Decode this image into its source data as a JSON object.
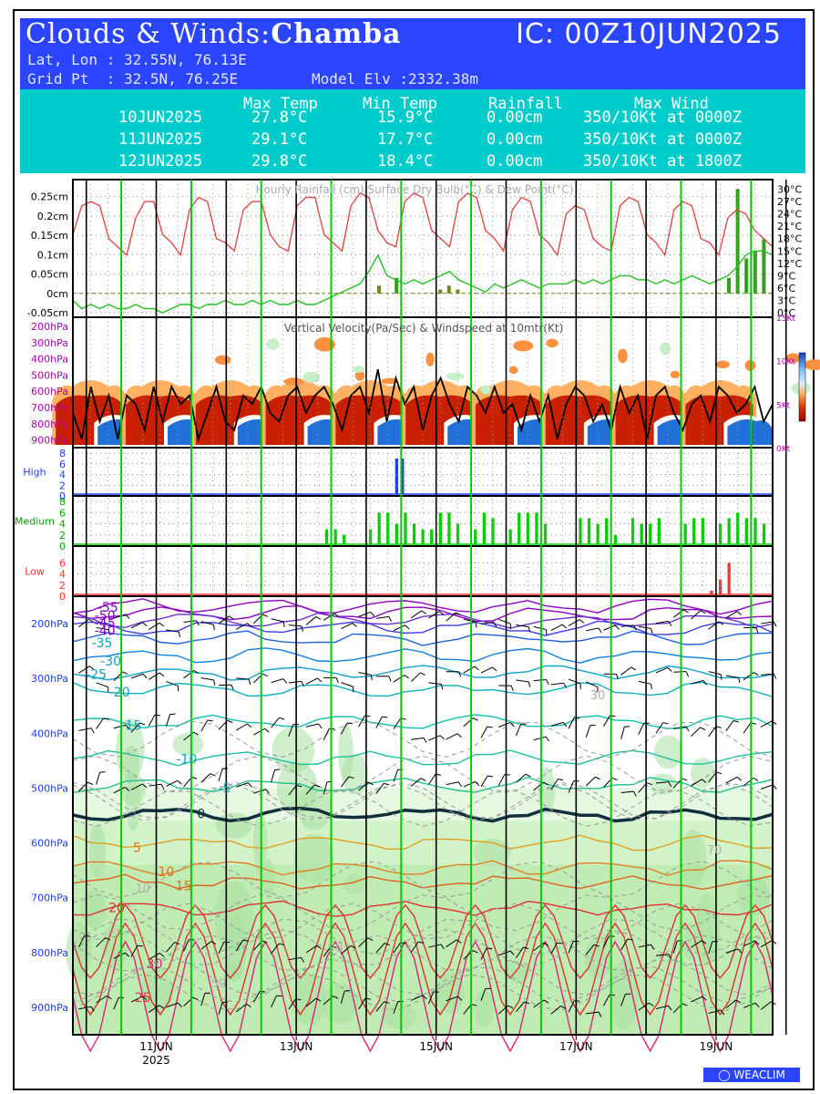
{
  "header": {
    "title_prefix": "Clouds & Winds:",
    "place": "Chamba",
    "ic": "IC: 00Z10JUN2025",
    "latlon": "Lat, Lon : 32.55N, 76.13E",
    "gridpt": "Grid Pt  : 32.5N, 76.25E",
    "elev": "Model Elv :2332.38m"
  },
  "summary": {
    "headers": [
      "Max Temp",
      "Min Temp",
      "Rainfall",
      "Max Wind"
    ],
    "rows": [
      {
        "date": "10JUN2025",
        "max": "27.8°C",
        "min": "15.9°C",
        "rain": "0.00cm",
        "wind": "350/10Kt at 0000Z"
      },
      {
        "date": "11JUN2025",
        "max": "29.1°C",
        "min": "17.7°C",
        "rain": "0.00cm",
        "wind": "350/10Kt at 0000Z"
      },
      {
        "date": "12JUN2025",
        "max": "29.8°C",
        "min": "18.4°C",
        "rain": "0.00cm",
        "wind": "350/10Kt at 1800Z"
      }
    ]
  },
  "colors": {
    "rain": "#6a8a1a",
    "rain_bright": "#2ea11a",
    "drybulb": "#e04a4a",
    "dewpoint": "#22c022",
    "high": "#1e3cff",
    "medium": "#00d000",
    "low": "#ff3030",
    "day_line": "#00cc00"
  },
  "chart_data": [
    {
      "type": "line",
      "title": "Hourly Rainfall (cm)   Surface Dry Bulb(°C)  & Dew Point(°C)",
      "yleft_ticks": [
        "0.25cm",
        "0.2cm",
        "0.15cm",
        "0.1cm",
        "0.05cm",
        "0cm",
        "-0.05cm"
      ],
      "yleft_values": [
        0.25,
        0.2,
        0.15,
        0.1,
        0.05,
        0,
        -0.05
      ],
      "ylim_left": [
        -0.05,
        0.28
      ],
      "yright_ticks": [
        "30°C",
        "27°C",
        "24°C",
        "21°C",
        "18°C",
        "15°C",
        "12°C",
        "9°C",
        "6°C",
        "3°C",
        "0°C"
      ],
      "yright_values": [
        30,
        27,
        24,
        21,
        18,
        15,
        12,
        9,
        6,
        3,
        0
      ],
      "ylim_right": [
        0,
        31
      ],
      "x_hours_range": [
        0,
        240
      ],
      "drybulb_c": [
        19,
        26,
        27,
        26,
        18,
        16,
        14,
        23,
        27,
        27,
        19,
        17,
        14,
        25,
        28,
        27,
        18,
        17,
        15,
        25,
        27,
        27,
        19,
        16,
        15,
        26,
        28,
        28,
        19,
        17,
        15,
        26,
        29,
        28,
        20,
        17,
        16,
        27,
        29,
        28,
        20,
        18,
        16,
        27,
        29,
        28,
        20,
        18,
        15,
        25,
        28,
        27,
        19,
        17,
        14,
        24,
        26,
        25,
        18,
        16,
        15,
        26,
        28,
        27,
        19,
        17,
        14,
        25,
        27,
        26,
        18,
        17,
        14,
        23,
        25,
        24,
        20,
        18,
        16
      ],
      "dewpoint_c": [
        3,
        1,
        2,
        1,
        2,
        1,
        1,
        2,
        1,
        1,
        0,
        1,
        2,
        2,
        1,
        2,
        2,
        3,
        2,
        2,
        3,
        2,
        3,
        2,
        2,
        3,
        2,
        2,
        3,
        4,
        5,
        6,
        7,
        10,
        14,
        9,
        8,
        7,
        8,
        7,
        8,
        9,
        10,
        8,
        7,
        6,
        5,
        7,
        6,
        7,
        8,
        7,
        6,
        7,
        7,
        7,
        8,
        7,
        8,
        7,
        8,
        9,
        9,
        8,
        8,
        7,
        8,
        7,
        8,
        9,
        8,
        7,
        8,
        9,
        11,
        14,
        15,
        15,
        14
      ],
      "rain_bars": [
        {
          "hour": 105,
          "value": 0.02
        },
        {
          "hour": 111,
          "value": 0.04
        },
        {
          "hour": 126,
          "value": 0.01
        },
        {
          "hour": 129,
          "value": 0.02
        },
        {
          "hour": 132,
          "value": 0.01
        },
        {
          "hour": 225,
          "value": 0.04
        },
        {
          "hour": 228,
          "value": 0.27
        },
        {
          "hour": 231,
          "value": 0.09
        },
        {
          "hour": 234,
          "value": 0.11
        },
        {
          "hour": 237,
          "value": 0.14
        }
      ]
    },
    {
      "type": "heatmap",
      "title": "Vertical Velocity(Pa/Sec) & Windspeed at 10mtr(Kt)",
      "y_ticks": [
        "200hPa",
        "300hPa",
        "400hPa",
        "500hPa",
        "600hPa",
        "700hPa",
        "800hPa",
        "900hPa"
      ],
      "yright_ticks": [
        "15Kt",
        "10Kt",
        "5Kt",
        "0Kt"
      ],
      "yright_values": [
        15,
        10,
        5,
        0
      ],
      "windspeed_kt": [
        4,
        1,
        7,
        3,
        6,
        1,
        6,
        5,
        2,
        7,
        3,
        7,
        5,
        6,
        1,
        4,
        7,
        3,
        2,
        6,
        5,
        7,
        4,
        3,
        6,
        7,
        4,
        6,
        7,
        5,
        2,
        6,
        7,
        4,
        9,
        3,
        8,
        5,
        7,
        2,
        6,
        8,
        5,
        3,
        7,
        6,
        4,
        7,
        4,
        5,
        2,
        6,
        3,
        6,
        1,
        5,
        7,
        6,
        3,
        5,
        2,
        7,
        4,
        6,
        1,
        6,
        7,
        4,
        2,
        5,
        6,
        3,
        7,
        6,
        4,
        5,
        7,
        3,
        5
      ]
    },
    {
      "type": "bar",
      "title": "Cloud cover",
      "panels": [
        {
          "label": "High",
          "y_ticks": [
            "8",
            "6",
            "4",
            "2",
            "0"
          ],
          "ylim": [
            0,
            8
          ],
          "bars": [
            {
              "hour": 111,
              "value": 7
            },
            {
              "hour": 113,
              "value": 7
            }
          ]
        },
        {
          "label": "Medium",
          "y_ticks": [
            "8",
            "6",
            "4",
            "2",
            "0"
          ],
          "ylim": [
            0,
            8
          ],
          "bars": [
            {
              "hour": 87,
              "value": 3
            },
            {
              "hour": 90,
              "value": 3
            },
            {
              "hour": 93,
              "value": 2
            },
            {
              "hour": 102,
              "value": 3
            },
            {
              "hour": 105,
              "value": 6
            },
            {
              "hour": 108,
              "value": 6
            },
            {
              "hour": 111,
              "value": 4
            },
            {
              "hour": 114,
              "value": 6
            },
            {
              "hour": 117,
              "value": 4
            },
            {
              "hour": 120,
              "value": 3
            },
            {
              "hour": 123,
              "value": 3
            },
            {
              "hour": 126,
              "value": 6
            },
            {
              "hour": 129,
              "value": 6
            },
            {
              "hour": 132,
              "value": 4
            },
            {
              "hour": 138,
              "value": 3
            },
            {
              "hour": 141,
              "value": 6
            },
            {
              "hour": 144,
              "value": 5
            },
            {
              "hour": 150,
              "value": 3
            },
            {
              "hour": 153,
              "value": 6
            },
            {
              "hour": 156,
              "value": 6
            },
            {
              "hour": 159,
              "value": 6
            },
            {
              "hour": 162,
              "value": 4
            },
            {
              "hour": 174,
              "value": 5
            },
            {
              "hour": 177,
              "value": 5
            },
            {
              "hour": 180,
              "value": 4
            },
            {
              "hour": 183,
              "value": 5
            },
            {
              "hour": 186,
              "value": 2
            },
            {
              "hour": 192,
              "value": 5
            },
            {
              "hour": 195,
              "value": 4
            },
            {
              "hour": 198,
              "value": 4
            },
            {
              "hour": 201,
              "value": 5
            },
            {
              "hour": 210,
              "value": 4
            },
            {
              "hour": 213,
              "value": 5
            },
            {
              "hour": 216,
              "value": 5
            },
            {
              "hour": 222,
              "value": 4
            },
            {
              "hour": 225,
              "value": 5
            },
            {
              "hour": 228,
              "value": 6
            },
            {
              "hour": 231,
              "value": 5
            },
            {
              "hour": 234,
              "value": 5
            },
            {
              "hour": 237,
              "value": 4
            }
          ]
        },
        {
          "label": "Low",
          "y_ticks": [
            "6",
            "4",
            "2",
            "0"
          ],
          "ylim": [
            0,
            8
          ],
          "bars": [
            {
              "hour": 219,
              "value": 1
            },
            {
              "hour": 222,
              "value": 3
            },
            {
              "hour": 225,
              "value": 6
            }
          ]
        }
      ]
    },
    {
      "type": "heatmap",
      "title": "Temperature & wind profile",
      "y_ticks": [
        "200hPa",
        "300hPa",
        "400hPa",
        "500hPa",
        "600hPa",
        "700hPa",
        "800hPa",
        "900hPa"
      ],
      "y_values": [
        200,
        300,
        400,
        500,
        600,
        700,
        800,
        900
      ],
      "isotherm_labels": [
        {
          "text": "-55",
          "hour": 12,
          "hPa": 170
        },
        {
          "text": "-50",
          "hour": 11,
          "hPa": 185
        },
        {
          "text": "-45",
          "hour": 11,
          "hPa": 198
        },
        {
          "text": "-40",
          "hour": 11,
          "hPa": 212
        },
        {
          "text": "-35",
          "hour": 10,
          "hPa": 235
        },
        {
          "text": "-30",
          "hour": 13,
          "hPa": 268
        },
        {
          "text": "-25",
          "hour": 8,
          "hPa": 292
        },
        {
          "text": "-20",
          "hour": 16,
          "hPa": 325
        },
        {
          "text": "-15",
          "hour": 20,
          "hPa": 385
        },
        {
          "text": "-10",
          "hour": 39,
          "hPa": 447
        },
        {
          "text": "-5",
          "hour": 52,
          "hPa": 500
        },
        {
          "text": "0",
          "hour": 44,
          "hPa": 547
        },
        {
          "text": "5",
          "hour": 22,
          "hPa": 608
        },
        {
          "text": "10",
          "hour": 32,
          "hPa": 652
        },
        {
          "text": "15",
          "hour": 38,
          "hPa": 678
        },
        {
          "text": "20",
          "hour": 15,
          "hPa": 718
        },
        {
          "text": "30",
          "hour": 28,
          "hPa": 820
        },
        {
          "text": "25",
          "hour": 24,
          "hPa": 882
        }
      ],
      "rh_labels": [
        "10",
        "30",
        "50",
        "70",
        "90"
      ]
    }
  ],
  "x_labels": [
    {
      "text": "11JUN",
      "sub": "2025",
      "hour": 24
    },
    {
      "text": "13JUN",
      "sub": "",
      "hour": 72
    },
    {
      "text": "15JUN",
      "sub": "",
      "hour": 120
    },
    {
      "text": "17JUN",
      "sub": "",
      "hour": 168
    },
    {
      "text": "19JUN",
      "sub": "",
      "hour": 216
    }
  ],
  "footer": {
    "brand": "WEACLIM"
  }
}
